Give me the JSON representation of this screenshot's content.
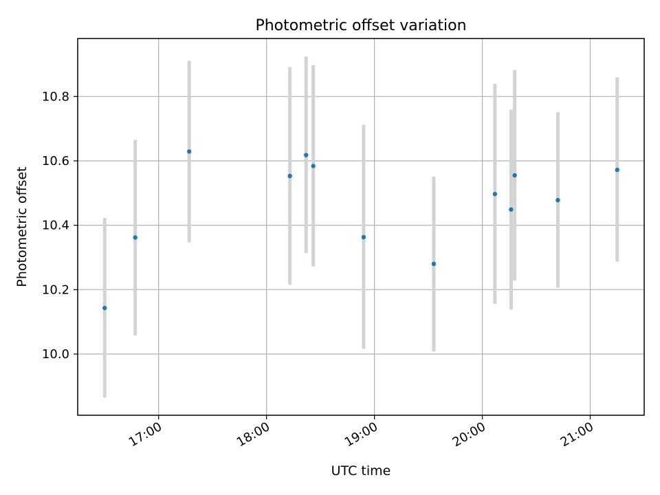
{
  "chart_data": {
    "type": "scatter",
    "title": "Photometric offset variation",
    "xlabel": "UTC time",
    "ylabel": "Photometric offset",
    "x_unit": "UTC time (hh:mm)",
    "xlim": [
      "16:15",
      "21:30"
    ],
    "ylim": [
      9.81,
      10.98
    ],
    "x_ticks": [
      "17:00",
      "18:00",
      "19:00",
      "20:00",
      "21:00"
    ],
    "y_ticks": [
      10.0,
      10.2,
      10.4,
      10.6,
      10.8
    ],
    "y_tick_labels": [
      "10.0",
      "10.2",
      "10.4",
      "10.6",
      "10.8"
    ],
    "grid": true,
    "marker_color": "#1f77b4",
    "errorbar_color": "#d3d3d3",
    "points": [
      {
        "x": "16:30",
        "y": 10.143,
        "yerr_low": 9.865,
        "yerr_high": 10.423
      },
      {
        "x": "16:47",
        "y": 10.362,
        "yerr_low": 10.058,
        "yerr_high": 10.665
      },
      {
        "x": "17:17",
        "y": 10.629,
        "yerr_low": 10.347,
        "yerr_high": 10.911
      },
      {
        "x": "18:13",
        "y": 10.553,
        "yerr_low": 10.215,
        "yerr_high": 10.891
      },
      {
        "x": "18:22",
        "y": 10.618,
        "yerr_low": 10.313,
        "yerr_high": 10.924
      },
      {
        "x": "18:26",
        "y": 10.584,
        "yerr_low": 10.272,
        "yerr_high": 10.897
      },
      {
        "x": "18:54",
        "y": 10.363,
        "yerr_low": 10.016,
        "yerr_high": 10.712
      },
      {
        "x": "19:33",
        "y": 10.28,
        "yerr_low": 10.008,
        "yerr_high": 10.551
      },
      {
        "x": "20:07",
        "y": 10.497,
        "yerr_low": 10.156,
        "yerr_high": 10.839
      },
      {
        "x": "20:16",
        "y": 10.449,
        "yerr_low": 10.138,
        "yerr_high": 10.759
      },
      {
        "x": "20:18",
        "y": 10.555,
        "yerr_low": 10.228,
        "yerr_high": 10.882
      },
      {
        "x": "20:42",
        "y": 10.478,
        "yerr_low": 10.206,
        "yerr_high": 10.751
      },
      {
        "x": "21:15",
        "y": 10.572,
        "yerr_low": 10.287,
        "yerr_high": 10.859
      }
    ]
  }
}
